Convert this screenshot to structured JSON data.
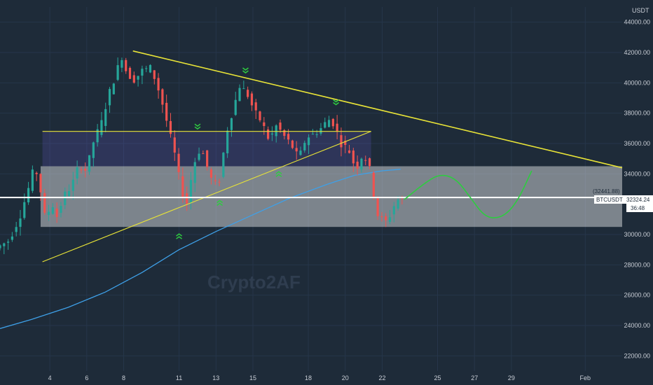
{
  "chart_data": {
    "type": "candlestick",
    "symbol_label": "BTCUSDT",
    "currency_label": "USDT",
    "last_price_label": "32324.24",
    "countdown_label": "36:48",
    "level_label": "(32441.88)",
    "watermark": "Crypto2AF",
    "y_ticks": [
      44000,
      42000,
      40000,
      38000,
      36000,
      34000,
      30000,
      28000,
      26000,
      24000,
      22000
    ],
    "y_tick_labels": [
      "44000.00",
      "42000.00",
      "40000.00",
      "38000.00",
      "36000.00",
      "34000.00",
      "30000.00",
      "28000.00",
      "26000.00",
      "24000.00",
      "22000.00"
    ],
    "x_ticks": [
      4,
      6,
      8,
      11,
      13,
      15,
      18,
      20,
      22,
      25,
      27,
      29,
      33
    ],
    "x_tick_labels": [
      "4",
      "6",
      "8",
      "11",
      "13",
      "15",
      "18",
      "20",
      "22",
      "25",
      "27",
      "29",
      "Feb"
    ],
    "ylim": [
      21000,
      45000
    ],
    "xlim": [
      1.3,
      35
    ],
    "last_price": 32324.24,
    "horizontal_level": 32441.88,
    "support_zone": [
      30500,
      34500
    ],
    "colors": {
      "up": "#26a69a",
      "down": "#ef5350",
      "trendline": "#e8e337",
      "ma": "#3ea0e8",
      "level": "#ffffff",
      "forecast": "#2ecc40",
      "marker": "#2ecc40"
    },
    "price_path": [
      [
        1.3,
        29100
      ],
      [
        2.0,
        29600
      ],
      [
        2.6,
        31200
      ],
      [
        3.1,
        33200
      ],
      [
        3.4,
        34600
      ],
      [
        3.7,
        33000
      ],
      [
        4.0,
        30800
      ],
      [
        4.3,
        32200
      ],
      [
        4.6,
        31200
      ],
      [
        5.0,
        32600
      ],
      [
        5.4,
        33200
      ],
      [
        5.8,
        34600
      ],
      [
        6.2,
        34200
      ],
      [
        6.6,
        36200
      ],
      [
        7.0,
        37300
      ],
      [
        7.4,
        39200
      ],
      [
        7.8,
        40600
      ],
      [
        8.1,
        41800
      ],
      [
        8.4,
        40600
      ],
      [
        8.8,
        40200
      ],
      [
        9.2,
        40800
      ],
      [
        9.7,
        41000
      ],
      [
        10.2,
        39200
      ],
      [
        10.6,
        37200
      ],
      [
        11.0,
        35200
      ],
      [
        11.3,
        33200
      ],
      [
        11.6,
        31800
      ],
      [
        12.0,
        34600
      ],
      [
        12.4,
        35800
      ],
      [
        12.8,
        34200
      ],
      [
        13.1,
        33200
      ],
      [
        13.4,
        33600
      ],
      [
        13.8,
        36800
      ],
      [
        14.2,
        38500
      ],
      [
        14.5,
        39800
      ],
      [
        14.9,
        39300
      ],
      [
        15.3,
        38100
      ],
      [
        15.7,
        37400
      ],
      [
        16.1,
        36200
      ],
      [
        16.5,
        37200
      ],
      [
        16.9,
        36500
      ],
      [
        17.3,
        35900
      ],
      [
        17.7,
        35000
      ],
      [
        18.1,
        36400
      ],
      [
        18.5,
        36600
      ],
      [
        18.9,
        37000
      ],
      [
        19.3,
        37600
      ],
      [
        19.6,
        37300
      ],
      [
        20.0,
        36000
      ],
      [
        20.4,
        35600
      ],
      [
        20.8,
        34300
      ],
      [
        21.2,
        35400
      ],
      [
        21.6,
        34100
      ],
      [
        21.9,
        31400
      ],
      [
        22.2,
        31000
      ],
      [
        22.5,
        30800
      ],
      [
        22.8,
        31800
      ],
      [
        23.1,
        32324
      ]
    ],
    "trendlines": [
      {
        "x1": 8.5,
        "y1": 42100,
        "x2": 35,
        "y2": 34400
      },
      {
        "x1": 3.6,
        "y1": 28200,
        "x2": 21.4,
        "y2": 36800
      },
      {
        "x1": 3.6,
        "y1": 36800,
        "x2": 21.4,
        "y2": 36800
      }
    ],
    "moving_average": [
      [
        1.3,
        23800
      ],
      [
        3,
        24400
      ],
      [
        5,
        25200
      ],
      [
        7,
        26200
      ],
      [
        9,
        27500
      ],
      [
        11,
        29000
      ],
      [
        13,
        30200
      ],
      [
        15,
        31300
      ],
      [
        17,
        32400
      ],
      [
        19,
        33300
      ],
      [
        20.5,
        33900
      ],
      [
        22,
        34200
      ],
      [
        23,
        34300
      ]
    ],
    "forecast_path": [
      [
        23.2,
        32300
      ],
      [
        24.2,
        33300
      ],
      [
        25.1,
        34000
      ],
      [
        26,
        33700
      ],
      [
        26.8,
        32400
      ],
      [
        27.6,
        31100
      ],
      [
        28.5,
        31100
      ],
      [
        29.3,
        32100
      ],
      [
        30.1,
        34200
      ]
    ],
    "markers": [
      {
        "x": 14.6,
        "y": 40800,
        "dir": "down"
      },
      {
        "x": 19.5,
        "y": 38700,
        "dir": "down"
      },
      {
        "x": 12.0,
        "y": 37100,
        "dir": "down"
      },
      {
        "x": 16.4,
        "y": 34000,
        "dir": "up"
      },
      {
        "x": 13.2,
        "y": 32100,
        "dir": "up"
      },
      {
        "x": 11.0,
        "y": 29900,
        "dir": "up"
      }
    ]
  }
}
